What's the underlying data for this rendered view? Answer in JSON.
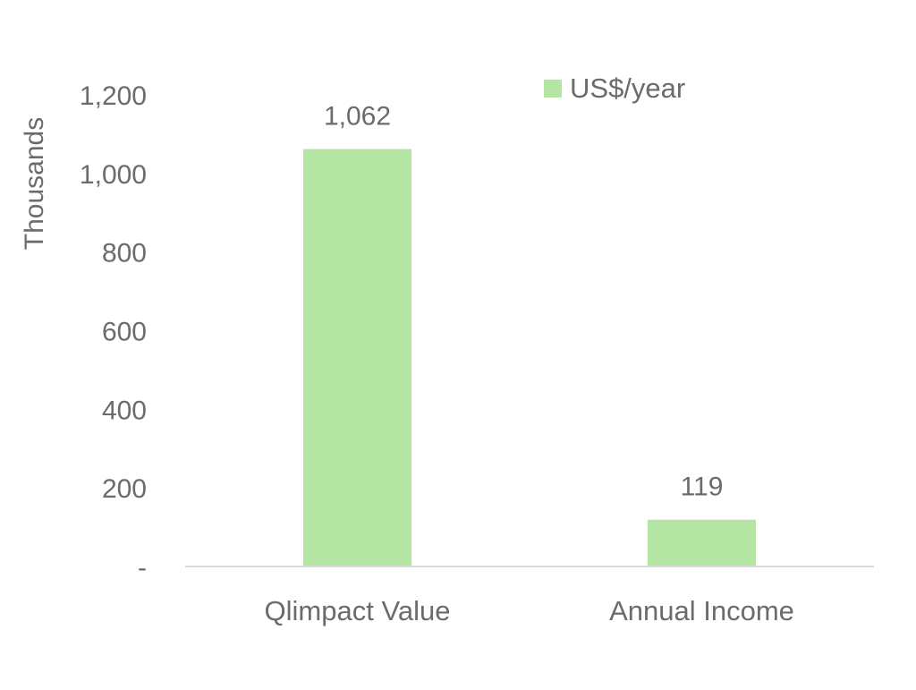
{
  "chart_data": {
    "type": "bar",
    "categories": [
      "Qlimpact Value",
      "Annual Income"
    ],
    "series": [
      {
        "name": "US$/year",
        "values": [
          1062,
          119
        ],
        "color": "#b5e5a2"
      }
    ],
    "data_labels": [
      "1,062",
      "119"
    ],
    "ylabel": "Thousands",
    "ylim": [
      0,
      1200
    ],
    "yticks": [
      0,
      200,
      400,
      600,
      800,
      1000,
      1200
    ],
    "ytick_labels": [
      "-",
      "200",
      "400",
      "600",
      "800",
      "1,000",
      "1,200"
    ],
    "grid": false,
    "legend_position": "top-right",
    "axis_color": "#d9d9d9",
    "text_color": "#6b6b6b"
  }
}
